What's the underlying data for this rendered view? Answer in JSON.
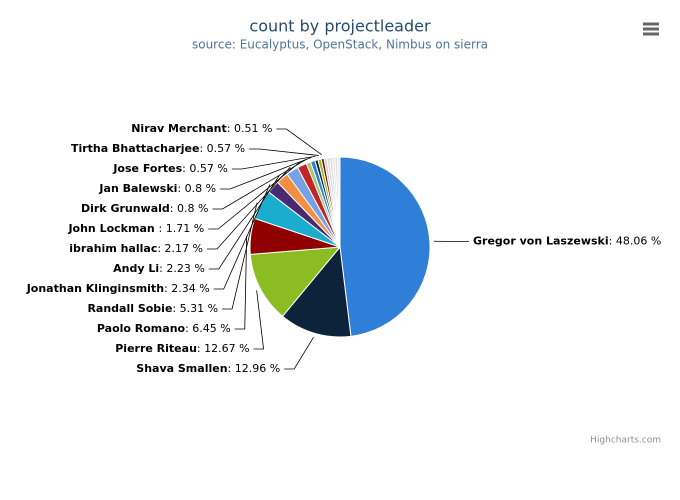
{
  "chart_data": {
    "type": "pie",
    "title": "count by projectleader",
    "subtitle": "source: Eucalyptus, OpenStack, Nimbus on sierra",
    "credits": "Highcharts.com",
    "categories": [
      "Gregor von Laszewski",
      "Shava Smallen",
      "Pierre Riteau",
      "Paolo Romano",
      "Randall Sobie",
      "Jonathan Klinginsmith",
      "Andy Li",
      "ibrahim hallac",
      "John Lockman ",
      "Dirk Grunwald",
      "Jan Balewski",
      "Jose Fortes",
      "Tirtha Bhattacharjee",
      "Nirav Merchant",
      null,
      null,
      null,
      null,
      null,
      null
    ],
    "values": [
      48.06,
      12.96,
      12.67,
      6.45,
      5.31,
      2.34,
      2.23,
      2.17,
      1.71,
      0.8,
      0.8,
      0.57,
      0.57,
      0.51,
      0.5,
      0.5,
      0.5,
      0.45,
      0.45,
      0.45
    ],
    "value_labels": [
      ": 48.06 %",
      ": 12.96 %",
      ": 12.67 %",
      ": 6.45 %",
      ": 5.31 %",
      ": 2.34 %",
      ": 2.23 %",
      ": 2.17 %",
      ": 1.71 %",
      ": 0.8 %",
      ": 0.8 %",
      ": 0.57 %",
      ": 0.57 %",
      ": 0.51 %",
      null,
      null,
      null,
      null,
      null,
      null
    ],
    "colors": [
      "#2f7ed8",
      "#0d233a",
      "#8bbc21",
      "#910000",
      "#1aadce",
      "#492970",
      "#f28f43",
      "#77a1e5",
      "#c42525",
      "#a6c96a",
      "#2f7ed8",
      "#0d233a",
      "#8bbc21",
      "#910000",
      "#d0d0d0",
      "#e0d8c8",
      "#d8d8e8",
      "#e8e0e0",
      "#dcdcdc",
      "#e8e8e8"
    ]
  }
}
